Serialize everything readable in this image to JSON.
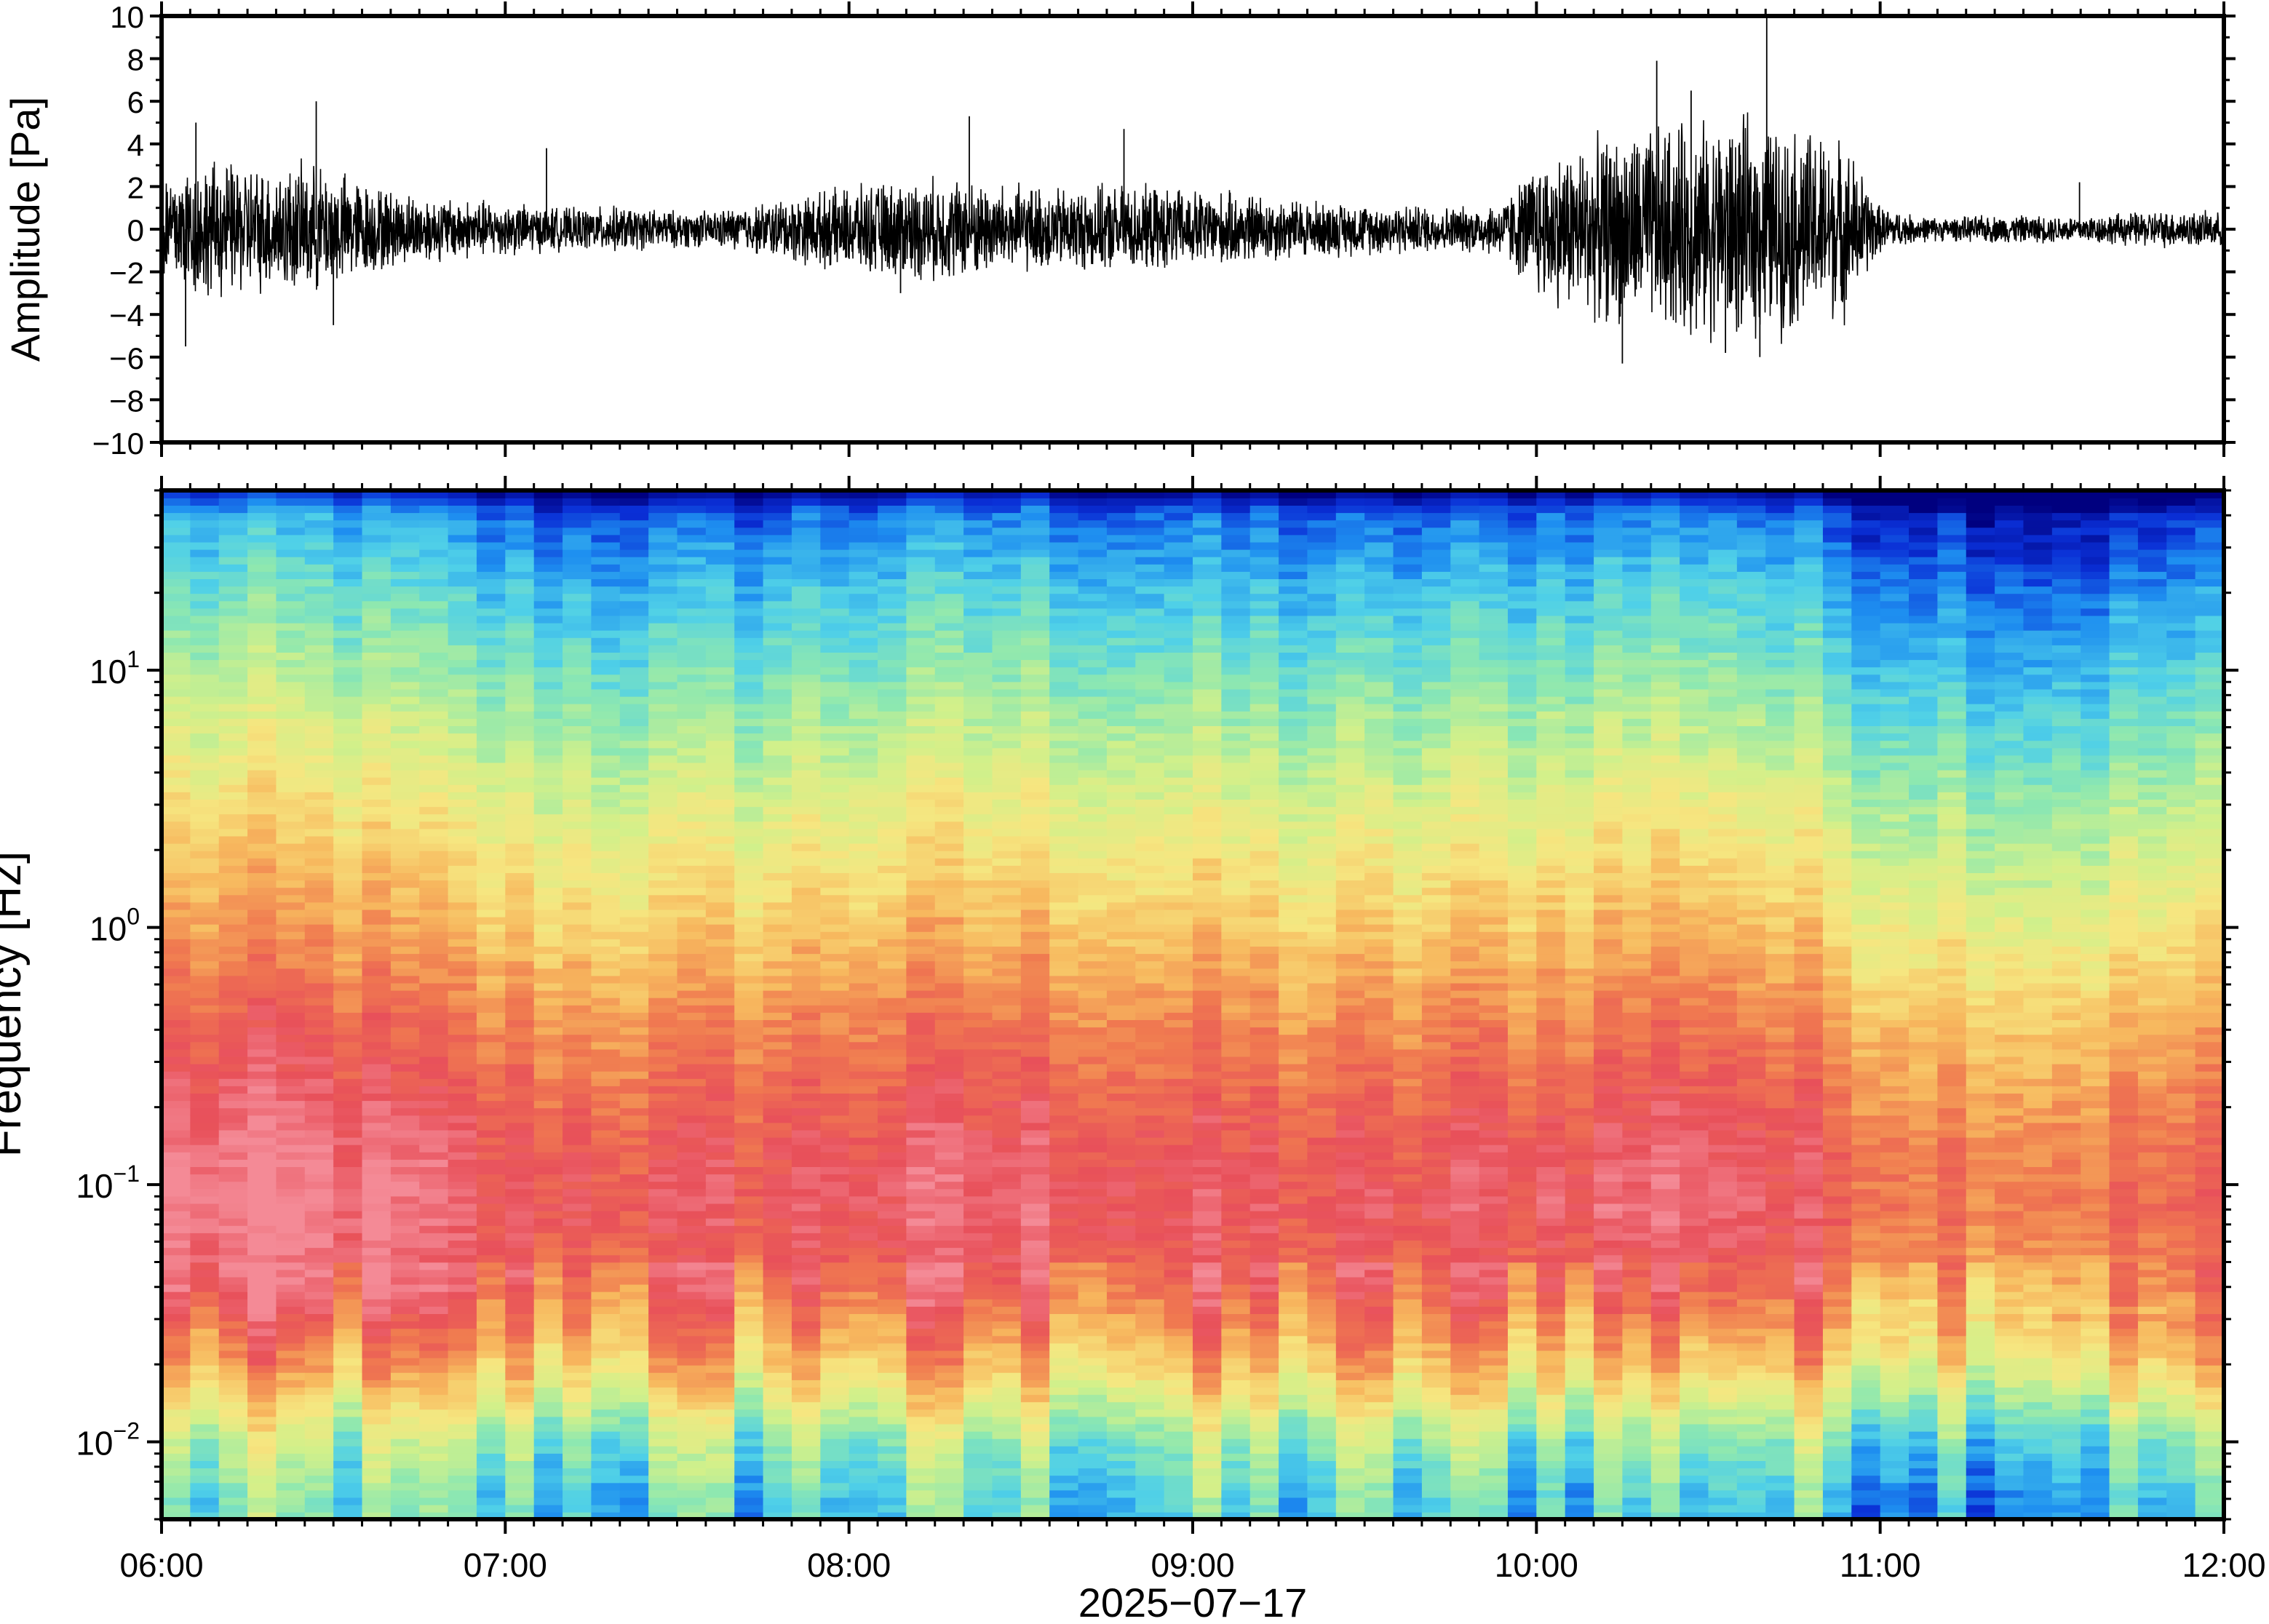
{
  "chart_data": [
    {
      "type": "line",
      "title": "",
      "xlabel": "",
      "ylabel": "Amplitude [Pa]",
      "ylim": [
        -10,
        10
      ],
      "yticks": [
        "10",
        "8",
        "6",
        "4",
        "2",
        "0",
        "−2",
        "−4",
        "−6",
        "−8",
        "−10"
      ],
      "yticks_values": [
        10,
        8,
        6,
        4,
        2,
        0,
        -2,
        -4,
        -6,
        -8,
        -10
      ],
      "grid": false,
      "series": [
        {
          "x_unit": "hour of day",
          "envelope_x": [
            6.0,
            6.1,
            6.2,
            6.3,
            6.4,
            6.5,
            6.6,
            6.7,
            6.8,
            6.9,
            7.0,
            7.1,
            7.2,
            7.3,
            7.4,
            7.5,
            7.6,
            7.7,
            7.8,
            7.9,
            8.0,
            8.1,
            8.2,
            8.3,
            8.4,
            8.5,
            8.6,
            8.7,
            8.8,
            8.9,
            9.0,
            9.1,
            9.2,
            9.3,
            9.4,
            9.5,
            9.6,
            9.7,
            9.8,
            9.9,
            10.0,
            10.1,
            10.2,
            10.3,
            10.4,
            10.5,
            10.6,
            10.7,
            10.8,
            10.9,
            11.0,
            11.1,
            11.2,
            11.3,
            11.4,
            11.5,
            11.6,
            11.7,
            11.8,
            11.9,
            12.0
          ],
          "envelope": [
            2.5,
            3.0,
            2.9,
            2.7,
            2.8,
            2.6,
            2.0,
            1.6,
            1.4,
            1.3,
            1.2,
            1.0,
            0.9,
            1.0,
            0.9,
            0.8,
            0.8,
            1.0,
            1.3,
            1.6,
            1.8,
            2.0,
            2.2,
            2.2,
            2.0,
            1.9,
            1.8,
            1.8,
            1.9,
            1.8,
            1.7,
            1.6,
            1.5,
            1.3,
            1.2,
            1.1,
            1.1,
            1.0,
            1.0,
            1.2,
            3.0,
            3.6,
            4.0,
            4.3,
            4.6,
            4.7,
            4.8,
            4.6,
            4.3,
            3.8,
            1.0,
            0.6,
            0.5,
            0.6,
            0.6,
            0.6,
            0.6,
            0.7,
            0.8,
            0.8,
            0.7
          ],
          "spikes": [
            {
              "x": 6.1,
              "y": 5.0
            },
            {
              "x": 6.07,
              "y": -5.5
            },
            {
              "x": 6.45,
              "y": 6.0
            },
            {
              "x": 6.5,
              "y": -4.5
            },
            {
              "x": 7.12,
              "y": 3.8
            },
            {
              "x": 8.35,
              "y": 5.3
            },
            {
              "x": 8.15,
              "y": -3.0
            },
            {
              "x": 8.8,
              "y": 4.7
            },
            {
              "x": 10.35,
              "y": 7.9
            },
            {
              "x": 10.25,
              "y": -6.3
            },
            {
              "x": 10.55,
              "y": -5.8
            },
            {
              "x": 10.67,
              "y": 10.0
            },
            {
              "x": 10.65,
              "y": -6.0
            },
            {
              "x": 10.45,
              "y": 6.5
            },
            {
              "x": 11.58,
              "y": 2.2
            }
          ]
        }
      ]
    },
    {
      "type": "heatmap",
      "title": "",
      "xlabel": "2025−07−17",
      "ylabel": "Frequency [Hz]",
      "x_range": [
        "06:00",
        "12:00"
      ],
      "xticks": [
        "06:00",
        "07:00",
        "08:00",
        "09:00",
        "10:00",
        "11:00",
        "12:00"
      ],
      "yscale": "log",
      "ylim": [
        0.005,
        50
      ],
      "yticks": [
        {
          "base": "10",
          "exp": "1",
          "value": 10
        },
        {
          "base": "10",
          "exp": "0",
          "value": 1
        },
        {
          "base": "10",
          "exp": "−1",
          "value": 0.1
        },
        {
          "base": "10",
          "exp": "−2",
          "value": 0.01
        }
      ],
      "colormap": "jet-like (blue low → yellow → red/pink high)",
      "colors": [
        "#00007f",
        "#0a2fd6",
        "#1e8ff0",
        "#4fd0e8",
        "#8ee8b0",
        "#d2f08a",
        "#f6e680",
        "#f7b85e",
        "#f07a50",
        "#e8505a",
        "#f48a96"
      ],
      "pattern_by_frequency_hz": [
        {
          "freq": 0.006,
          "level": 0.32
        },
        {
          "freq": 0.01,
          "level": 0.42
        },
        {
          "freq": 0.02,
          "level": 0.68
        },
        {
          "freq": 0.04,
          "level": 0.86
        },
        {
          "freq": 0.08,
          "level": 0.93
        },
        {
          "freq": 0.15,
          "level": 0.9
        },
        {
          "freq": 0.4,
          "level": 0.8
        },
        {
          "freq": 1,
          "level": 0.68
        },
        {
          "freq": 3,
          "level": 0.55
        },
        {
          "freq": 8,
          "level": 0.42
        },
        {
          "freq": 20,
          "level": 0.3
        },
        {
          "freq": 40,
          "level": 0.18
        },
        {
          "freq": 50,
          "level": 0.02
        }
      ],
      "pattern_by_time_hour": [
        {
          "t": 6.0,
          "offset": 0.06
        },
        {
          "t": 6.5,
          "offset": 0.06
        },
        {
          "t": 7.0,
          "offset": -0.02
        },
        {
          "t": 7.5,
          "offset": -0.04
        },
        {
          "t": 8.0,
          "offset": 0.0
        },
        {
          "t": 8.5,
          "offset": 0.02
        },
        {
          "t": 9.0,
          "offset": -0.02
        },
        {
          "t": 9.5,
          "offset": -0.04
        },
        {
          "t": 10.0,
          "offset": 0.0
        },
        {
          "t": 10.5,
          "offset": 0.04
        },
        {
          "t": 11.0,
          "offset": -0.08
        },
        {
          "t": 11.5,
          "offset": -0.12
        },
        {
          "t": 12.0,
          "offset": -0.08
        }
      ]
    }
  ]
}
